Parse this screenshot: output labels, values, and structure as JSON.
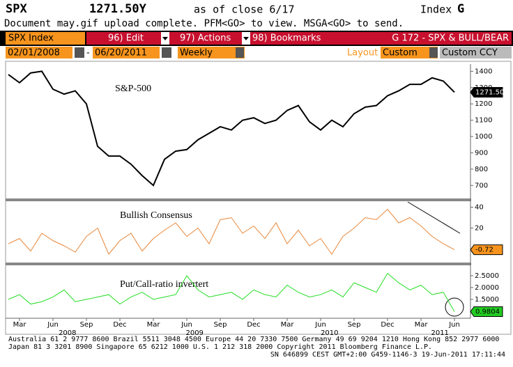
{
  "header": {
    "ticker": "SPX",
    "price": "1271.50Y",
    "asof": "as of close  6/17",
    "market": "Index",
    "market_key": "G",
    "message": "Document may.gif upload complete. PFM<GO> to view. MSGA<GO> to send.",
    "security": "SPX Index",
    "menu_edit": "96) Edit",
    "menu_actions": "97) Actions",
    "menu_bookmarks": "98) Bookmarks",
    "function": "G 172 - SPX & BULL/BEAR",
    "start_date": "02/01/2008",
    "dash": "-",
    "end_date": "06/20/2011",
    "period": "Weekly",
    "layout_label": "Layout",
    "layout": "Custom",
    "currency": "Custom CCY"
  },
  "chart_data": [
    {
      "type": "line",
      "title": "S&P-500",
      "series": [
        {
          "name": "SPX",
          "color": "#000000",
          "values": [
            1380,
            1330,
            1390,
            1400,
            1290,
            1260,
            1280,
            1200,
            940,
            880,
            880,
            830,
            760,
            700,
            860,
            910,
            920,
            980,
            1020,
            1060,
            1040,
            1100,
            1115,
            1080,
            1100,
            1160,
            1190,
            1090,
            1040,
            1100,
            1060,
            1140,
            1180,
            1190,
            1250,
            1280,
            1320,
            1320,
            1360,
            1340,
            1271.5
          ],
          "last_value_label": "1271.50"
        }
      ],
      "xlim": [
        0,
        40
      ],
      "ylim": [
        620,
        1440
      ],
      "yticks": [
        700,
        800,
        900,
        1000,
        1100,
        1200,
        1300,
        1400
      ]
    },
    {
      "type": "line",
      "title": "Bullish Consensus",
      "series": [
        {
          "name": "Bullish Consensus",
          "color": "#e8873a",
          "values": [
            5,
            10,
            -2,
            15,
            8,
            3,
            -3,
            12,
            20,
            -5,
            8,
            15,
            -2,
            10,
            18,
            25,
            12,
            20,
            5,
            28,
            30,
            15,
            22,
            10,
            25,
            5,
            18,
            3,
            10,
            -5,
            12,
            20,
            30,
            28,
            38,
            25,
            30,
            22,
            12,
            5,
            -0.72
          ],
          "last_value_label": "-0.72"
        }
      ],
      "xlim": [
        0,
        40
      ],
      "ylim": [
        -13,
        45
      ],
      "yticks": [
        20,
        40
      ]
    },
    {
      "type": "line",
      "title": "Put/Call-ratio invertert",
      "series": [
        {
          "name": "Put/Call",
          "color": "#22dd22",
          "values": [
            1.5,
            1.7,
            1.3,
            1.4,
            1.6,
            1.9,
            1.4,
            1.5,
            1.6,
            1.7,
            1.3,
            1.6,
            1.8,
            1.5,
            1.6,
            1.7,
            2.5,
            1.9,
            1.6,
            1.7,
            1.8,
            1.5,
            1.9,
            1.7,
            1.6,
            2.1,
            1.8,
            1.6,
            1.7,
            1.9,
            1.6,
            2.2,
            2.0,
            1.8,
            2.6,
            2.2,
            1.9,
            2.1,
            1.7,
            1.8,
            0.9804
          ],
          "last_value_label": "0.9804"
        }
      ],
      "xlim": [
        0,
        40
      ],
      "ylim": [
        0.76,
        2.88
      ],
      "yticks": [
        {
          "value": 1.5,
          "label": "1.5000"
        },
        {
          "value": 2,
          "label": "2.0000"
        },
        {
          "value": 2.5,
          "label": "2.5000"
        }
      ],
      "xticks": [
        {
          "value": 1,
          "label": "Mar"
        },
        {
          "value": 4,
          "label": "Jun"
        },
        {
          "value": 7,
          "label": "Sep"
        },
        {
          "value": 10,
          "label": "Dec"
        },
        {
          "value": 13,
          "label": "Mar"
        },
        {
          "value": 16,
          "label": "Jun"
        },
        {
          "value": 19,
          "label": "Sep"
        },
        {
          "value": 22,
          "label": "Dec"
        },
        {
          "value": 25,
          "label": "Mar"
        },
        {
          "value": 28,
          "label": "Jun"
        },
        {
          "value": 31,
          "label": "Sep"
        },
        {
          "value": 34,
          "label": "Dec"
        },
        {
          "value": 37,
          "label": "Mar"
        },
        {
          "value": 40,
          "label": "Jun"
        }
      ],
      "year_ticks": [
        {
          "value": 5.3,
          "label": "2008"
        },
        {
          "value": 16.7,
          "label": "2009"
        },
        {
          "value": 28.8,
          "label": "2010"
        },
        {
          "value": 38.7,
          "label": "2011"
        }
      ]
    }
  ],
  "footer": {
    "line1": "Australia 61 2 9777 8600 Brazil 5511 3048 4500 Europe 44 20 7330 7500 Germany 49 69 9204 1210 Hong Kong 852 2977 6000",
    "line2": "Japan 81 3 3201 8900      Singapore 65 6212 1000      U.S. 1 212 318 2000      Copyright 2011 Bloomberg Finance L.P.",
    "line3": "SN 646899 CEST GMT+2:00 G459-1146-3 19-Jun-2011 17:11:44"
  }
}
